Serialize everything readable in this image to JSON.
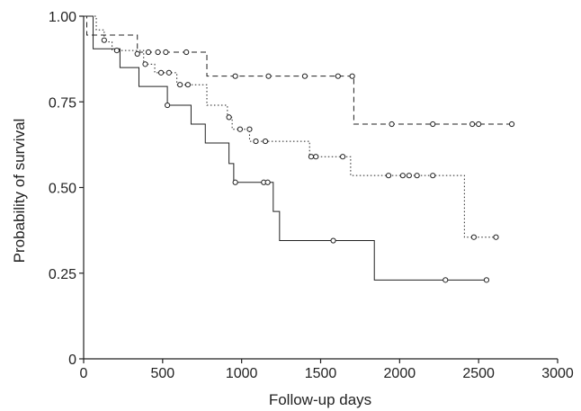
{
  "chart_data": {
    "type": "line",
    "title": "",
    "xlabel": "Follow-up days",
    "ylabel": "Probability of survival",
    "xlim": [
      0,
      3000
    ],
    "ylim": [
      0,
      1
    ],
    "x_ticks": [
      0,
      500,
      1000,
      1500,
      2000,
      2500,
      3000
    ],
    "y_ticks": [
      0,
      0.25,
      0.5,
      0.75,
      1
    ],
    "x_tick_labels": [
      "0",
      "500",
      "1000",
      "1500",
      "2000",
      "2500",
      "3000"
    ],
    "y_tick_labels": [
      "0",
      "0.25",
      "0.50",
      "0.75",
      "1.00"
    ],
    "grid": false,
    "legend": "none",
    "series": [
      {
        "style": "solid",
        "steps": [
          [
            0,
            1.0
          ],
          [
            60,
            0.905
          ],
          [
            230,
            0.85
          ],
          [
            350,
            0.795
          ],
          [
            530,
            0.74
          ],
          [
            680,
            0.685
          ],
          [
            770,
            0.63
          ],
          [
            920,
            0.57
          ],
          [
            950,
            0.515
          ],
          [
            1200,
            0.43
          ],
          [
            1240,
            0.345
          ],
          [
            1840,
            0.23
          ],
          [
            2550,
            0.23
          ]
        ],
        "censored": [
          [
            530,
            0.74
          ],
          [
            960,
            0.515
          ],
          [
            1140,
            0.515
          ],
          [
            1165,
            0.515
          ],
          [
            1580,
            0.345
          ],
          [
            2290,
            0.23
          ],
          [
            2550,
            0.23
          ]
        ]
      },
      {
        "style": "dashed",
        "steps": [
          [
            0,
            1.0
          ],
          [
            20,
            0.945
          ],
          [
            340,
            0.895
          ],
          [
            780,
            0.825
          ],
          [
            1710,
            0.685
          ],
          [
            2710,
            0.685
          ]
        ],
        "censored": [
          [
            340,
            0.89
          ],
          [
            410,
            0.895
          ],
          [
            470,
            0.895
          ],
          [
            520,
            0.895
          ],
          [
            650,
            0.895
          ],
          [
            960,
            0.825
          ],
          [
            1170,
            0.825
          ],
          [
            1400,
            0.825
          ],
          [
            1610,
            0.825
          ],
          [
            1700,
            0.825
          ],
          [
            1950,
            0.685
          ],
          [
            2210,
            0.685
          ],
          [
            2460,
            0.685
          ],
          [
            2500,
            0.685
          ],
          [
            2710,
            0.685
          ]
        ]
      },
      {
        "style": "dotted",
        "steps": [
          [
            0,
            1.0
          ],
          [
            80,
            0.96
          ],
          [
            130,
            0.925
          ],
          [
            180,
            0.9
          ],
          [
            380,
            0.86
          ],
          [
            450,
            0.835
          ],
          [
            590,
            0.8
          ],
          [
            780,
            0.74
          ],
          [
            910,
            0.705
          ],
          [
            940,
            0.67
          ],
          [
            1050,
            0.635
          ],
          [
            1430,
            0.59
          ],
          [
            1690,
            0.535
          ],
          [
            2410,
            0.355
          ],
          [
            2610,
            0.355
          ]
        ],
        "censored": [
          [
            130,
            0.93
          ],
          [
            210,
            0.9
          ],
          [
            390,
            0.86
          ],
          [
            490,
            0.835
          ],
          [
            540,
            0.835
          ],
          [
            610,
            0.8
          ],
          [
            660,
            0.8
          ],
          [
            920,
            0.705
          ],
          [
            990,
            0.67
          ],
          [
            1050,
            0.67
          ],
          [
            1090,
            0.635
          ],
          [
            1150,
            0.635
          ],
          [
            1440,
            0.59
          ],
          [
            1470,
            0.59
          ],
          [
            1640,
            0.59
          ],
          [
            1930,
            0.535
          ],
          [
            2020,
            0.535
          ],
          [
            2060,
            0.535
          ],
          [
            2110,
            0.535
          ],
          [
            2210,
            0.535
          ],
          [
            2470,
            0.355
          ],
          [
            2610,
            0.355
          ]
        ]
      }
    ]
  }
}
